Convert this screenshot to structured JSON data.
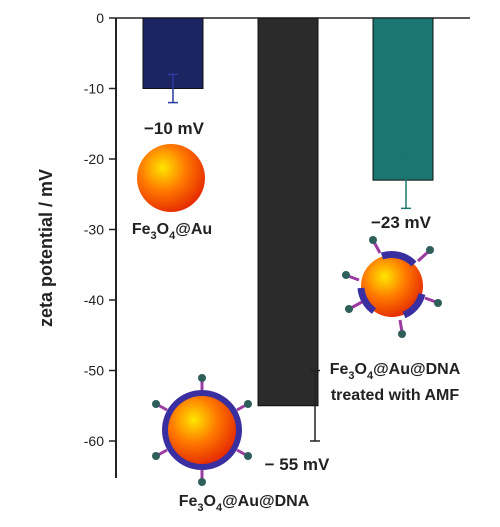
{
  "chart_data": {
    "type": "bar",
    "ylabel": "zeta potential / mV",
    "ylim": [
      -65,
      0
    ],
    "yticks": [
      0,
      -10,
      -20,
      -30,
      -40,
      -50,
      -60
    ],
    "grid": false,
    "series": [
      {
        "values": [
          -10,
          -55,
          -23
        ],
        "errors": [
          2,
          5,
          4
        ],
        "colors": [
          "#1c2461",
          "#2b2b2b",
          "#1b7570"
        ]
      }
    ],
    "value_labels": [
      "−10 mV",
      "− 55 mV",
      "−23 mV"
    ],
    "sample_labels": {
      "au": "Fe3O4@Au",
      "dna": "Fe3O4@Au@DNA",
      "amf_line1": "Fe3O4@Au@DNA",
      "amf_line2": "treated with AMF"
    }
  }
}
